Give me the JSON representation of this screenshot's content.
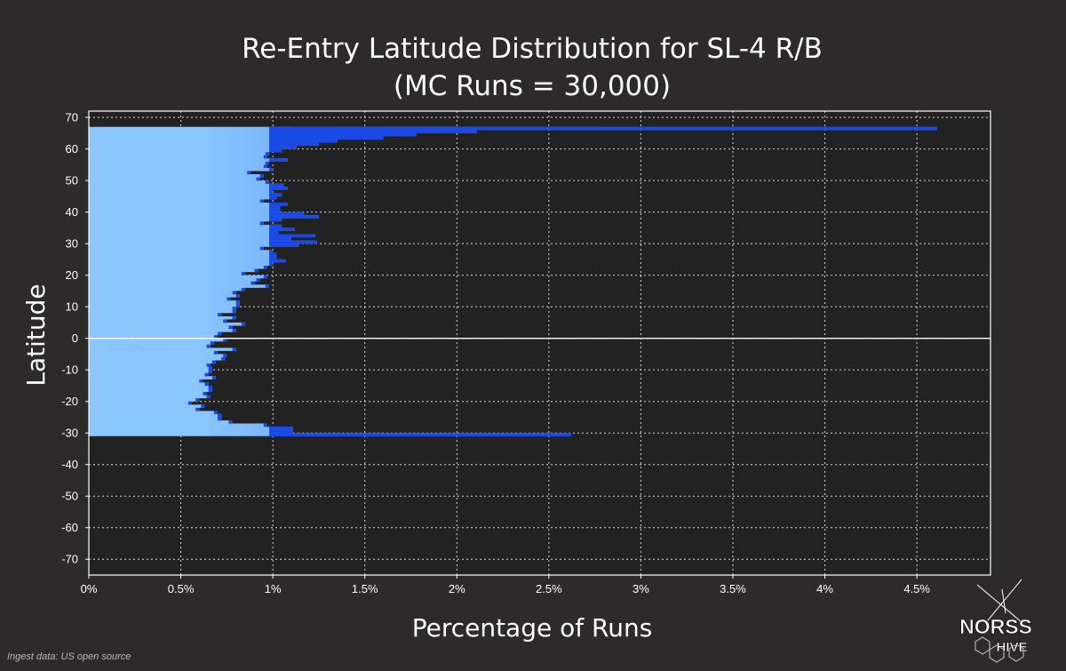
{
  "chart_data": {
    "type": "bar",
    "orientation": "horizontal",
    "title": [
      "Re-Entry Latitude Distribution for SL-4 R/B",
      "(MC Runs = 30,000)"
    ],
    "xlabel": "Percentage of Runs",
    "ylabel": "Latitude",
    "xlim": [
      0,
      4.9
    ],
    "ylim": [
      -75,
      72
    ],
    "xticks": [
      "0%",
      "0.5%",
      "1%",
      "1.5%",
      "2%",
      "2.5%",
      "3%",
      "3.5%",
      "4%",
      "4.5%"
    ],
    "xtick_values": [
      0,
      0.5,
      1,
      1.5,
      2,
      2.5,
      3,
      3.5,
      4,
      4.5
    ],
    "yticks": [
      "70",
      "60",
      "50",
      "40",
      "30",
      "20",
      "10",
      "0",
      "-10",
      "-20",
      "-30",
      "-40",
      "-50",
      "-60",
      "-70"
    ],
    "ytick_values": [
      70,
      60,
      50,
      40,
      30,
      20,
      10,
      0,
      -10,
      -20,
      -30,
      -40,
      -50,
      -60,
      -70
    ],
    "grid": true,
    "bin_width": 1,
    "lat_start": 67,
    "values": [
      4.61,
      2.11,
      1.78,
      1.6,
      1.35,
      1.25,
      1.13,
      1.05,
      0.98,
      0.97,
      1.08,
      0.98,
      0.97,
      1.0,
      0.88,
      0.95,
      0.93,
      0.98,
      1.06,
      1.08,
      1.0,
      1.05,
      1.02,
      0.95,
      1.08,
      1.04,
      1.04,
      1.17,
      1.25,
      1.05,
      0.95,
      1.05,
      1.12,
      1.03,
      1.23,
      1.1,
      1.24,
      1.14,
      0.95,
      1.0,
      1.02,
      1.02,
      1.07,
      1.0,
      0.97,
      0.92,
      0.85,
      0.97,
      0.93,
      0.9,
      0.98,
      0.85,
      0.8,
      0.82,
      0.77,
      0.82,
      0.82,
      0.8,
      0.8,
      0.72,
      0.8,
      0.75,
      0.85,
      0.78,
      0.8,
      0.72,
      0.7,
      0.75,
      0.68,
      0.66,
      0.8,
      0.7,
      0.75,
      0.74,
      0.69,
      0.66,
      0.67,
      0.67,
      0.65,
      0.69,
      0.62,
      0.65,
      0.67,
      0.67,
      0.64,
      0.66,
      0.6,
      0.56,
      0.63,
      0.6,
      0.7,
      0.72,
      0.72,
      0.78,
      0.97,
      1.11,
      1.11,
      2.62
    ],
    "bar_color": "#1a4ae6",
    "fill_gradient": [
      "#8cc6ff",
      "#1a4ae6"
    ],
    "zero_line": true
  },
  "footer": {
    "source": "Ingest data: US open source"
  },
  "branding": {
    "logo_text_top": "NORSS",
    "logo_text_bottom": "HIVE"
  }
}
